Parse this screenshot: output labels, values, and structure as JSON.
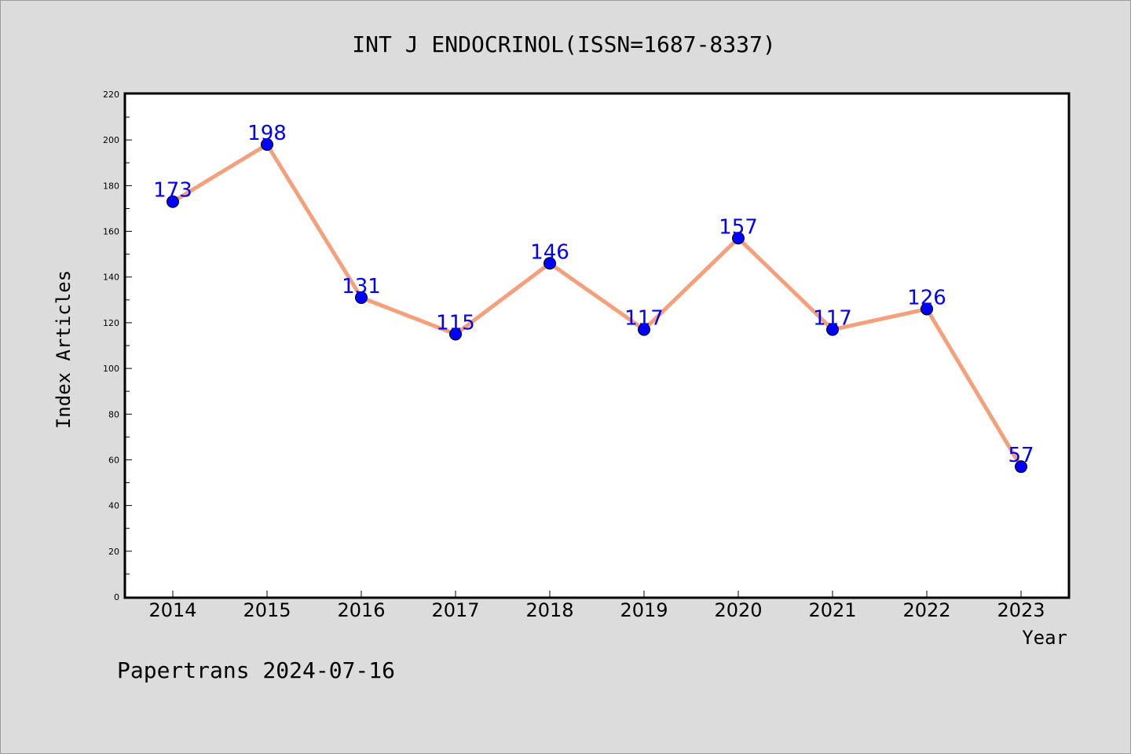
{
  "chart_data": {
    "type": "line",
    "title": "INT J ENDOCRINOL(ISSN=1687-8337)",
    "xlabel": "Year",
    "ylabel": "Index Articles",
    "categories": [
      "2014",
      "2015",
      "2016",
      "2017",
      "2018",
      "2019",
      "2020",
      "2021",
      "2022",
      "2023"
    ],
    "series": [
      {
        "values": [
          173,
          198,
          131,
          115,
          146,
          117,
          157,
          117,
          126,
          57
        ]
      }
    ],
    "ylim": [
      0,
      220
    ],
    "yticks": [
      0,
      20,
      40,
      60,
      80,
      100,
      120,
      140,
      160,
      180,
      200,
      220
    ],
    "grid": false,
    "line_color": "#f5a07a",
    "marker_color": "#0000ff",
    "label_color": "#0000ff"
  },
  "footer": "Papertrans 2024-07-16"
}
